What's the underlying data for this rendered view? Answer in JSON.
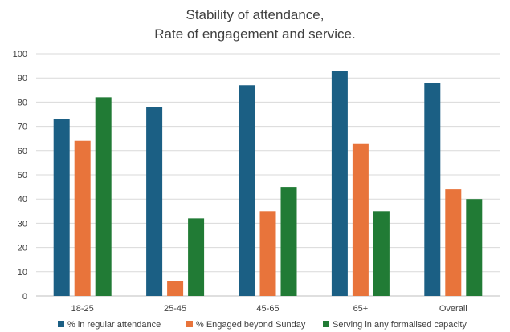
{
  "chart_data": {
    "type": "bar",
    "title_lines": [
      "Stability of attendance,",
      "Rate of engagement and service."
    ],
    "xlabel": "",
    "ylabel": "",
    "categories": [
      "18-25",
      "25-45",
      "45-65",
      "65+",
      "Overall"
    ],
    "ylim": [
      0,
      100
    ],
    "yticks": [
      0,
      10,
      20,
      30,
      40,
      50,
      60,
      70,
      80,
      90,
      100
    ],
    "grid": true,
    "legend_position": "bottom",
    "series": [
      {
        "name": "% in regular attendance",
        "color": "#1b5f84",
        "values": [
          73,
          78,
          87,
          93,
          88
        ]
      },
      {
        "name": "% Engaged beyond Sunday",
        "color": "#e8743b",
        "values": [
          64,
          6,
          35,
          63,
          44
        ]
      },
      {
        "name": "Serving in any formalised capacity",
        "color": "#217b35",
        "values": [
          82,
          32,
          45,
          35,
          40
        ]
      }
    ]
  }
}
